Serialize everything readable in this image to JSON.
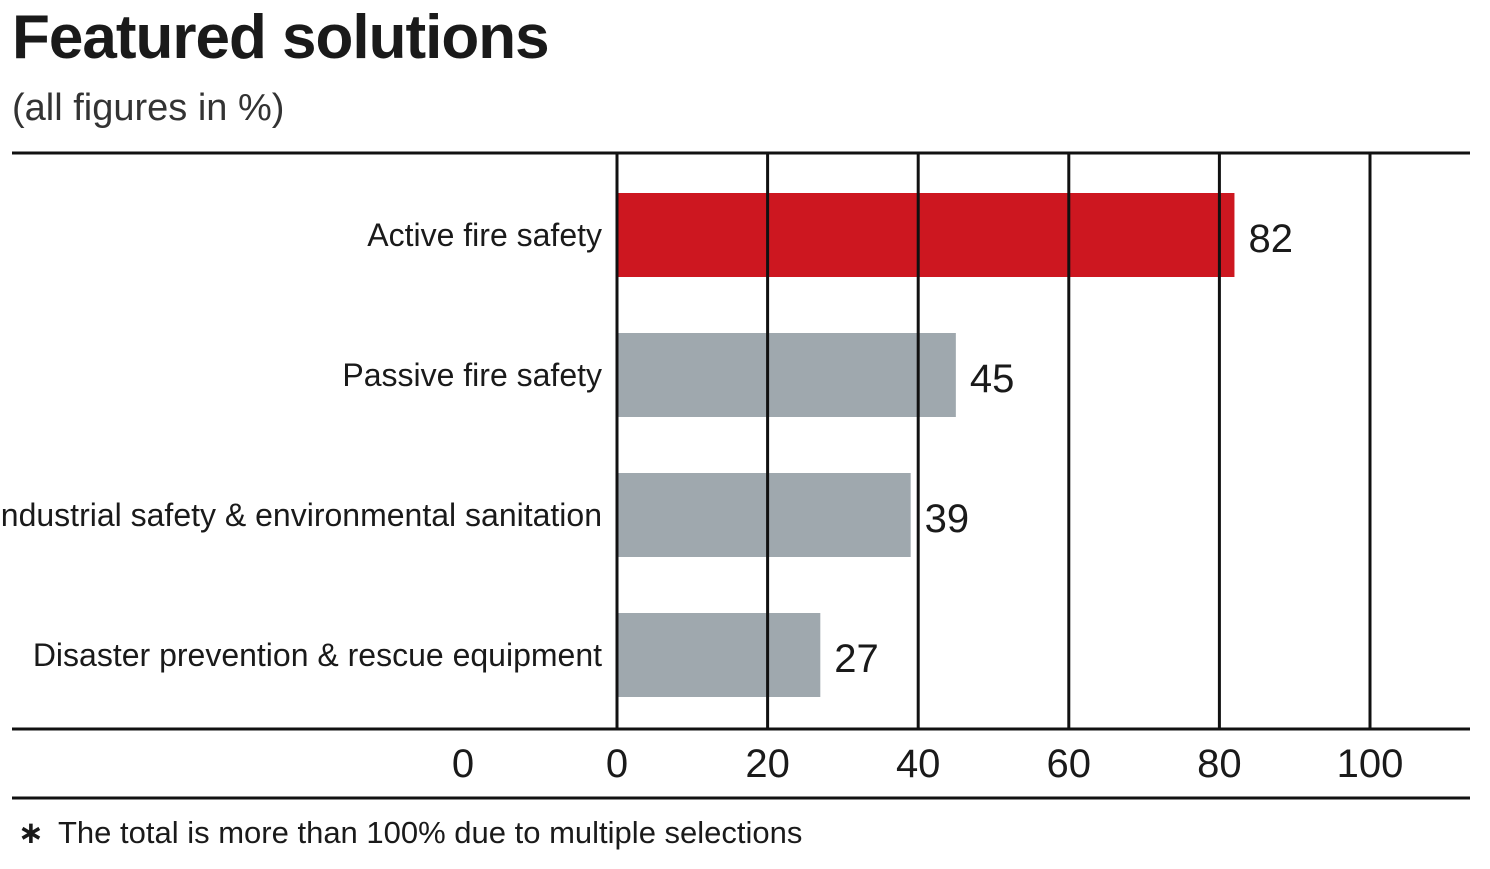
{
  "title": "Featured solutions",
  "subtitle": "(all figures in %)",
  "footnote": {
    "symbol": "∗",
    "text": "The total is more than 100% due to multiple selections"
  },
  "colors": {
    "highlight": "#cd1720",
    "default_bar": "#9fa8ae",
    "grid": "#111111",
    "text": "#1a1a1a"
  },
  "chart_data": {
    "type": "bar",
    "orientation": "horizontal",
    "categories": [
      "Active fire safety",
      "Passive fire safety",
      "Industrial safety & environmental sanitation",
      "Disaster prevention & rescue equipment"
    ],
    "values": [
      82,
      45,
      39,
      27
    ],
    "highlight_index": 0,
    "data_labels": [
      "82",
      "45",
      "39",
      "27"
    ],
    "xlim": [
      0,
      100
    ],
    "x_ticks": [
      "0",
      "0",
      "20",
      "40",
      "60",
      "80",
      "100"
    ],
    "grid": true,
    "legend": "none"
  }
}
